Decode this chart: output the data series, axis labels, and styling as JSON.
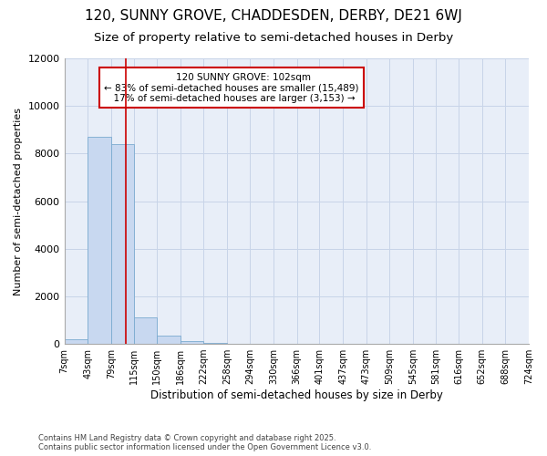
{
  "title_line1": "120, SUNNY GROVE, CHADDESDEN, DERBY, DE21 6WJ",
  "title_line2": "Size of property relative to semi-detached houses in Derby",
  "xlabel": "Distribution of semi-detached houses by size in Derby",
  "ylabel": "Number of semi-detached properties",
  "bin_edges": [
    7,
    43,
    79,
    115,
    150,
    186,
    222,
    258,
    294,
    330,
    366,
    401,
    437,
    473,
    509,
    545,
    581,
    616,
    652,
    688,
    724
  ],
  "bar_heights": [
    200,
    8700,
    8400,
    1100,
    350,
    100,
    50,
    0,
    0,
    0,
    0,
    0,
    0,
    0,
    0,
    0,
    0,
    0,
    0,
    0
  ],
  "bar_color": "#c8d8f0",
  "bar_edgecolor": "#7aaad0",
  "property_size": 102,
  "property_label": "120 SUNNY GROVE: 102sqm",
  "pct_smaller": 83,
  "count_smaller": 15489,
  "pct_larger": 17,
  "count_larger": 3153,
  "vline_color": "#cc0000",
  "annotation_edgecolor": "#cc0000",
  "ylim": [
    0,
    12000
  ],
  "yticks": [
    0,
    2000,
    4000,
    6000,
    8000,
    10000,
    12000
  ],
  "grid_color": "#c8d4e8",
  "background_color": "#ffffff",
  "plot_bg_color": "#e8eef8",
  "footer_line1": "Contains HM Land Registry data © Crown copyright and database right 2025.",
  "footer_line2": "Contains public sector information licensed under the Open Government Licence v3.0.",
  "title_fontsize": 11,
  "subtitle_fontsize": 9.5,
  "tick_label_fontsize": 7,
  "ylabel_fontsize": 8,
  "xlabel_fontsize": 8.5,
  "annotation_fontsize": 7.5
}
